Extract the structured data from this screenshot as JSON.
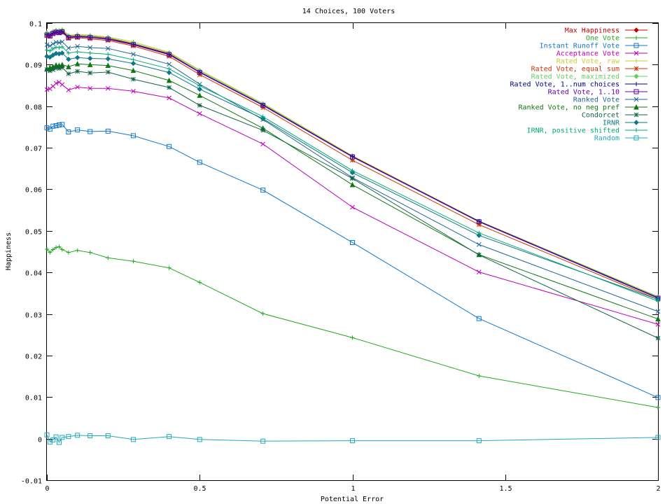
{
  "chart_data": {
    "type": "line",
    "title": "14 Choices, 100 Voters",
    "xlabel": "Potential Error",
    "ylabel": "Happiness",
    "xlim": [
      0,
      2
    ],
    "ylim": [
      -0.01,
      0.1
    ],
    "xticks": [
      0,
      0.5,
      1,
      1.5,
      2
    ],
    "xtick_labels": [
      "0",
      "0.5",
      "1",
      "1.5",
      "2"
    ],
    "yticks": [
      -0.01,
      0,
      0.01,
      0.02,
      0.03,
      0.04,
      0.05,
      0.06,
      0.07,
      0.08,
      0.09,
      0.1
    ],
    "ytick_labels": [
      "-0.01",
      "0",
      "0.01",
      "0.02",
      "0.03",
      "0.04",
      "0.05",
      "0.06",
      "0.07",
      "0.08",
      "0.09",
      "0.1"
    ],
    "grid": false,
    "legend_position": "top-right",
    "x": [
      0,
      0.01,
      0.02,
      0.03,
      0.04,
      0.05,
      0.0707,
      0.1,
      0.1414,
      0.2,
      0.2828,
      0.4,
      0.5,
      0.7071,
      1,
      1.4142,
      2
    ],
    "series": [
      {
        "name": "Max Happiness",
        "color": "#cc0000",
        "marker": "diamond",
        "values": [
          0.0975,
          0.0972,
          0.0978,
          0.0981,
          0.098,
          0.0982,
          0.0968,
          0.097,
          0.0968,
          0.0964,
          0.095,
          0.0926,
          0.0882,
          0.0803,
          0.068,
          0.0522,
          0.034
        ]
      },
      {
        "name": "One Vote",
        "color": "#22aa22",
        "marker": "plus",
        "values": [
          0.0456,
          0.0448,
          0.0455,
          0.046,
          0.0462,
          0.0455,
          0.0448,
          0.0453,
          0.0448,
          0.0435,
          0.0427,
          0.0411,
          0.0376,
          0.0301,
          0.0243,
          0.0151,
          0.0075
        ]
      },
      {
        "name": "Instant Runoff Vote",
        "color": "#1177cc",
        "marker": "square",
        "values": [
          0.0748,
          0.0745,
          0.0752,
          0.0753,
          0.0755,
          0.0756,
          0.0738,
          0.0743,
          0.0739,
          0.074,
          0.0729,
          0.0703,
          0.0665,
          0.0598,
          0.0472,
          0.0289,
          0.0099
        ]
      },
      {
        "name": "Acceptance Vote",
        "color": "#bb00bb",
        "marker": "cross",
        "values": [
          0.084,
          0.0842,
          0.0848,
          0.0855,
          0.0858,
          0.0852,
          0.0839,
          0.0846,
          0.0843,
          0.0843,
          0.0836,
          0.082,
          0.0782,
          0.0709,
          0.0557,
          0.0401,
          0.0275
        ]
      },
      {
        "name": "Rated Vote, raw",
        "color": "#cccc33",
        "marker": "plus",
        "values": [
          0.0978,
          0.0975,
          0.098,
          0.0984,
          0.0983,
          0.0985,
          0.0971,
          0.0973,
          0.0971,
          0.0967,
          0.0955,
          0.093,
          0.0887,
          0.0807,
          0.0681,
          0.0524,
          0.0342
        ]
      },
      {
        "name": "Rated Vote, equal sum",
        "color": "#cc3300",
        "marker": "star",
        "values": [
          0.097,
          0.0968,
          0.0974,
          0.0977,
          0.0976,
          0.0978,
          0.0963,
          0.0965,
          0.0962,
          0.0958,
          0.0945,
          0.092,
          0.0876,
          0.0797,
          0.067,
          0.0515,
          0.0335
        ]
      },
      {
        "name": "Rated Vote, maximized",
        "color": "#66cc66",
        "marker": "diamond",
        "values": [
          0.0976,
          0.0974,
          0.0979,
          0.0982,
          0.0981,
          0.0983,
          0.0969,
          0.0971,
          0.0969,
          0.0965,
          0.0952,
          0.0928,
          0.0885,
          0.0805,
          0.0679,
          0.0523,
          0.0341
        ]
      },
      {
        "name": "Rated Vote, 1..num choices",
        "color": "#000088",
        "marker": "plus",
        "values": [
          0.0972,
          0.097,
          0.0976,
          0.0979,
          0.0978,
          0.098,
          0.0966,
          0.0968,
          0.0966,
          0.0962,
          0.0949,
          0.0925,
          0.0882,
          0.0803,
          0.0679,
          0.0523,
          0.0339
        ]
      },
      {
        "name": "Rated Vote, 1..10",
        "color": "#6600aa",
        "marker": "square",
        "values": [
          0.0971,
          0.0969,
          0.0975,
          0.0978,
          0.0977,
          0.0979,
          0.0965,
          0.0967,
          0.0965,
          0.0961,
          0.0948,
          0.0924,
          0.0881,
          0.0802,
          0.0678,
          0.0522,
          0.0338
        ]
      },
      {
        "name": "Ranked Vote",
        "color": "#226699",
        "marker": "cross",
        "values": [
          0.0948,
          0.0945,
          0.095,
          0.0954,
          0.0953,
          0.0955,
          0.094,
          0.0944,
          0.0941,
          0.0939,
          0.0925,
          0.0901,
          0.0853,
          0.0768,
          0.0628,
          0.0467,
          0.0306
        ]
      },
      {
        "name": "Ranked Vote, no neg pref",
        "color": "#117711",
        "marker": "triangle",
        "values": [
          0.089,
          0.0893,
          0.0895,
          0.0899,
          0.0898,
          0.09,
          0.0895,
          0.0902,
          0.09,
          0.0898,
          0.0886,
          0.0862,
          0.0826,
          0.0747,
          0.0611,
          0.0443,
          0.0288
        ]
      },
      {
        "name": "Condorcet",
        "color": "#116644",
        "marker": "star",
        "values": [
          0.0888,
          0.0885,
          0.0888,
          0.0892,
          0.0891,
          0.0893,
          0.0878,
          0.0884,
          0.088,
          0.0882,
          0.0865,
          0.0845,
          0.0802,
          0.0742,
          0.0626,
          0.0442,
          0.0242
        ]
      },
      {
        "name": "IRNR",
        "color": "#117788",
        "marker": "diamond",
        "values": [
          0.092,
          0.0918,
          0.0923,
          0.0927,
          0.0926,
          0.0928,
          0.0913,
          0.0917,
          0.0915,
          0.0914,
          0.0903,
          0.0881,
          0.0841,
          0.077,
          0.064,
          0.0489,
          0.0335
        ]
      },
      {
        "name": "IRNR, positive shifted",
        "color": "#00aa77",
        "marker": "plus",
        "values": [
          0.0935,
          0.0933,
          0.0938,
          0.0942,
          0.0941,
          0.0943,
          0.0928,
          0.0931,
          0.0928,
          0.0925,
          0.0912,
          0.089,
          0.0849,
          0.0775,
          0.0645,
          0.0495,
          0.0331
        ]
      },
      {
        "name": "Random",
        "color": "#22aabb",
        "marker": "square",
        "values": [
          0.0009,
          -0.0008,
          -0.0003,
          0.0004,
          -0.0009,
          0.0003,
          0.0005,
          0.0008,
          0.0007,
          0.0007,
          -0.0002,
          0.0005,
          -0.0002,
          -0.0006,
          -0.0005,
          -0.0005,
          0.0003
        ]
      }
    ]
  }
}
